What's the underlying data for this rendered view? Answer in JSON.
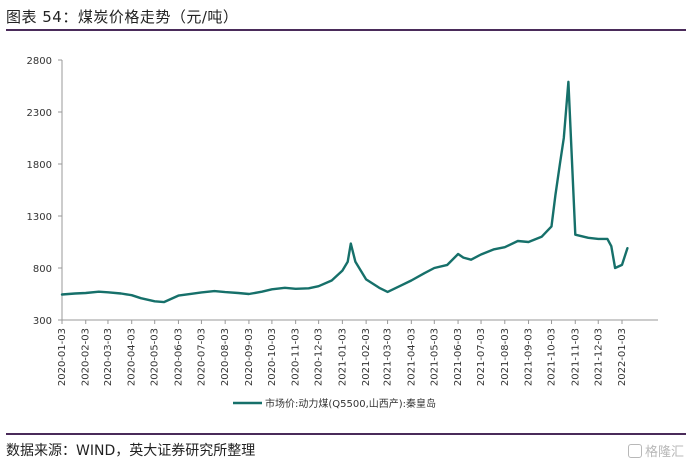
{
  "header": {
    "title": "图表 54：煤炭价格走势（元/吨）"
  },
  "footer": {
    "source": "数据来源：WIND，英大证券研究所整理",
    "watermark": "格隆汇"
  },
  "colors": {
    "series": "#16706a",
    "rule": "#4a2b5a",
    "axis": "#999999"
  },
  "chart_data": {
    "type": "line",
    "title": "",
    "ylim": [
      300,
      2800
    ],
    "yticks": [
      300,
      800,
      1300,
      1800,
      2300,
      2800
    ],
    "xticks": [
      "2020-01-03",
      "2020-02-03",
      "2020-03-03",
      "2020-04-03",
      "2020-05-03",
      "2020-06-03",
      "2020-07-03",
      "2020-08-03",
      "2020-09-03",
      "2020-10-03",
      "2020-11-03",
      "2020-12-03",
      "2021-01-03",
      "2021-02-03",
      "2021-03-03",
      "2021-04-03",
      "2021-05-03",
      "2021-06-03",
      "2021-07-03",
      "2021-08-03",
      "2021-09-03",
      "2021-10-03",
      "2021-11-03",
      "2021-12-03",
      "2022-01-03"
    ],
    "grid": false,
    "legend": "bottom",
    "series": [
      {
        "name": "市场价:动力煤(Q5500,山西产):秦皇岛",
        "x": [
          "2020-01-03",
          "2020-01-20",
          "2020-02-03",
          "2020-02-20",
          "2020-03-03",
          "2020-03-20",
          "2020-04-03",
          "2020-04-15",
          "2020-05-03",
          "2020-05-15",
          "2020-06-03",
          "2020-06-20",
          "2020-07-03",
          "2020-07-20",
          "2020-08-03",
          "2020-08-20",
          "2020-09-03",
          "2020-09-20",
          "2020-10-03",
          "2020-10-20",
          "2020-11-03",
          "2020-11-20",
          "2020-12-03",
          "2020-12-20",
          "2021-01-03",
          "2021-01-10",
          "2021-01-14",
          "2021-01-20",
          "2021-02-03",
          "2021-02-20",
          "2021-03-03",
          "2021-03-20",
          "2021-04-03",
          "2021-04-20",
          "2021-05-03",
          "2021-05-20",
          "2021-06-03",
          "2021-06-10",
          "2021-06-20",
          "2021-07-03",
          "2021-07-20",
          "2021-08-03",
          "2021-08-20",
          "2021-09-03",
          "2021-09-20",
          "2021-10-03",
          "2021-10-08",
          "2021-10-14",
          "2021-10-19",
          "2021-10-25",
          "2021-11-03",
          "2021-11-20",
          "2021-12-03",
          "2021-12-15",
          "2021-12-20",
          "2021-12-25",
          "2022-01-03",
          "2022-01-10"
        ],
        "values": [
          545,
          555,
          560,
          572,
          566,
          555,
          538,
          510,
          480,
          472,
          535,
          552,
          565,
          578,
          568,
          560,
          550,
          572,
          595,
          610,
          600,
          605,
          625,
          680,
          775,
          860,
          1035,
          860,
          690,
          610,
          570,
          630,
          680,
          750,
          800,
          830,
          935,
          900,
          880,
          930,
          980,
          1000,
          1060,
          1050,
          1100,
          1200,
          1500,
          1800,
          2050,
          2590,
          1120,
          1090,
          1080,
          1080,
          1010,
          800,
          830,
          990
        ]
      }
    ]
  }
}
